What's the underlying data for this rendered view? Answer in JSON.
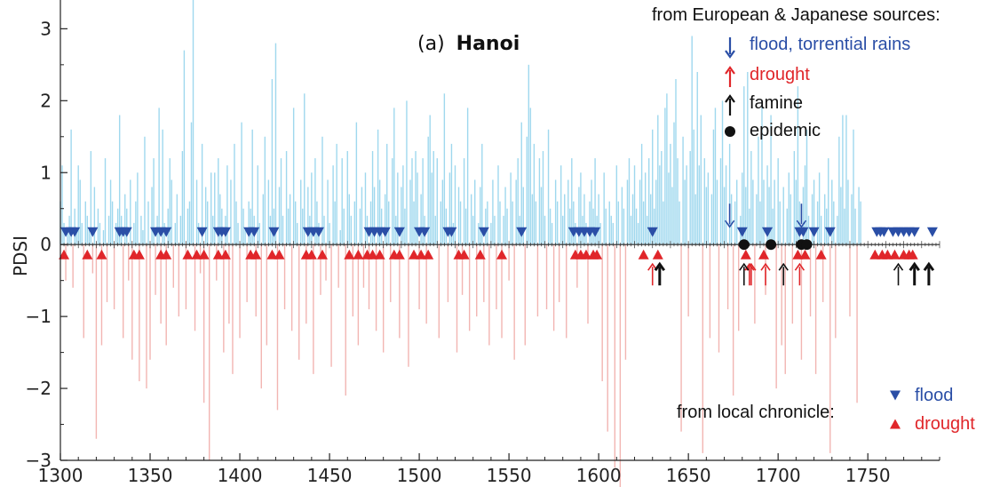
{
  "chart_data": {
    "type": "bar",
    "title_prefix": "(a)",
    "title": "Hanoi",
    "xlabel": "",
    "ylabel": "PDSI",
    "xlim": [
      1300,
      1790
    ],
    "ylim": [
      -3,
      3.4
    ],
    "x_ticks": [
      1300,
      1350,
      1400,
      1450,
      1500,
      1550,
      1600,
      1650,
      1700,
      1750
    ],
    "y_ticks": [
      -3,
      -2,
      -1,
      0,
      1,
      2,
      3
    ],
    "y_tick_labels": [
      "−3",
      "−2",
      "−1",
      "0",
      "1",
      "2",
      "3"
    ],
    "colors": {
      "positive": "#9fd8ee",
      "negative": "#f2b5b2",
      "flood": "#2a4ea6",
      "drought": "#e0262a",
      "famine": "#111111",
      "epidemic": "#111111"
    },
    "series_pdsi": {
      "x_start": 1300,
      "x_step": 1,
      "values": [
        0.6,
        1.1,
        0.3,
        -0.5,
        0.2,
        0.4,
        1.6,
        -0.6,
        0.5,
        0.2,
        1.1,
        0.9,
        0.3,
        -1.3,
        0.6,
        0.4,
        0.2,
        1.3,
        -0.4,
        0.8,
        -2.7,
        0.5,
        0.3,
        -1.4,
        0.2,
        1.2,
        -0.8,
        0.4,
        0.9,
        0.6,
        -0.9,
        0.3,
        0.5,
        1.8,
        0.4,
        -1.3,
        0.7,
        0.5,
        -0.5,
        0.9,
        -1.6,
        0.3,
        0.6,
        1.0,
        -1.9,
        0.4,
        0.2,
        1.5,
        -2.0,
        0.6,
        -1.6,
        0.8,
        1.2,
        -0.7,
        0.4,
        1.9,
        -1.1,
        1.6,
        0.3,
        -1.4,
        0.5,
        1.2,
        0.9,
        -0.6,
        0.3,
        0.7,
        -1.0,
        0.4,
        1.3,
        2.7,
        -0.9,
        0.5,
        0.6,
        1.7,
        3.7,
        -1.2,
        0.9,
        0.3,
        -0.4,
        1.4,
        -2.2,
        0.8,
        0.6,
        -3.0,
        1.0,
        0.4,
        1.0,
        -0.5,
        1.2,
        0.7,
        0.5,
        -1.5,
        0.4,
        1.1,
        -1.1,
        0.9,
        -1.8,
        1.4,
        0.6,
        0.3,
        -1.3,
        1.7,
        0.5,
        0.2,
        -0.8,
        0.6,
        0.5,
        1.6,
        0.4,
        -1.0,
        1.1,
        0.3,
        -2.0,
        0.7,
        1.5,
        -1.4,
        0.9,
        0.4,
        2.3,
        0.5,
        2.8,
        -2.3,
        0.8,
        1.2,
        0.4,
        -0.9,
        1.3,
        0.5,
        0.7,
        -1.2,
        1.9,
        0.6,
        0.3,
        -1.6,
        0.9,
        0.5,
        2.1,
        -1.1,
        0.8,
        0.4,
        1.0,
        -1.8,
        1.2,
        0.6,
        0.3,
        -0.7,
        1.5,
        0.4,
        -0.5,
        0.9,
        0.3,
        -1.7,
        1.1,
        0.6,
        1.4,
        -0.6,
        0.2,
        1.2,
        0.5,
        -2.1,
        1.3,
        0.7,
        0.4,
        -1.0,
        0.6,
        1.7,
        -1.4,
        0.5,
        0.8,
        -0.6,
        1.0,
        0.4,
        -0.9,
        0.6,
        1.3,
        0.8,
        -1.2,
        1.6,
        0.9,
        0.5,
        -1.5,
        0.7,
        1.4,
        0.6,
        -0.8,
        1.2,
        1.9,
        0.4,
        1.0,
        -1.3,
        0.8,
        1.1,
        0.5,
        2.0,
        -1.7,
        0.9,
        1.2,
        0.6,
        1.3,
        1.0,
        -0.9,
        0.7,
        1.2,
        0.4,
        -1.1,
        1.5,
        1.8,
        1.0,
        1.3,
        0.4,
        1.2,
        -1.3,
        0.6,
        0.9,
        2.1,
        0.5,
        -0.8,
        1.0,
        1.4,
        0.3,
        1.1,
        -1.5,
        0.8,
        0.6,
        -0.7,
        1.2,
        0.5,
        1.9,
        -1.2,
        0.7,
        0.4,
        0.9,
        -1.0,
        0.3,
        0.8,
        1.4,
        -0.8,
        0.5,
        0.6,
        -1.4,
        0.3,
        0.9,
        0.4,
        -0.9,
        1.1,
        0.6,
        -1.3,
        0.4,
        0.8,
        0.5,
        -0.5,
        1.0,
        0.6,
        -1.6,
        0.9,
        1.2,
        0.4,
        1.7,
        0.8,
        -1.4,
        1.5,
        2.5,
        1.9,
        0.7,
        1.4,
        0.6,
        -1.0,
        1.2,
        0.8,
        1.3,
        0.4,
        -0.9,
        1.6,
        0.5,
        0.3,
        -1.2,
        0.9,
        0.6,
        -0.8,
        1.1,
        0.4,
        0.7,
        -1.3,
        0.9,
        0.5,
        1.2,
        0.6,
        0.3,
        -0.6,
        0.8,
        1.0,
        0.4,
        0.7,
        0.3,
        -1.1,
        0.6,
        0.9,
        0.5,
        1.2,
        0.4,
        0.7,
        0.3,
        -1.9,
        1.0,
        0.5,
        -2.6,
        0.6,
        0.4,
        0.3,
        -3.1,
        1.1,
        0.6,
        -3.4,
        0.8,
        0.5,
        -1.6,
        0.9,
        1.2,
        0.4,
        0.7,
        1.1,
        0.5,
        0.3,
        0.9,
        1.4,
        0.6,
        1.0,
        0.4,
        1.2,
        0.7,
        1.6,
        0.5,
        0.9,
        1.8,
        1.1,
        1.3,
        0.6,
        1.9,
        2.1,
        1.0,
        1.4,
        0.8,
        1.7,
        2.3,
        1.2,
        0.6,
        -2.6,
        1.5,
        0.9,
        1.1,
        -1.0,
        1.3,
        2.9,
        1.6,
        0.7,
        2.4,
        1.1,
        1.8,
        -2.9,
        1.2,
        0.8,
        1.0,
        -1.3,
        0.7,
        1.6,
        1.9,
        0.9,
        -1.5,
        1.2,
        2.0,
        0.8,
        1.1,
        -0.9,
        1.4,
        0.7,
        -2.1,
        0.6,
        0.9,
        -1.2,
        0.4,
        1.0,
        2.2,
        0.8,
        2.4,
        0.5,
        1.3,
        0.9,
        -1.1,
        0.7,
        1.5,
        0.6,
        2.0,
        0.9,
        -0.7,
        1.1,
        0.8,
        1.8,
        0.5,
        0.9,
        -2.0,
        1.2,
        0.6,
        -1.4,
        0.8,
        -1.8,
        0.5,
        1.0,
        0.7,
        -1.1,
        1.3,
        0.9,
        2.2,
        0.6,
        -1.6,
        0.8,
        1.1,
        1.6,
        0.4,
        -1.0,
        0.7,
        0.9,
        -1.8,
        0.6,
        1.0,
        0.4,
        -0.8,
        0.7,
        0.5,
        1.2,
        -2.9,
        0.9,
        0.6,
        -1.3,
        0.4,
        1.5,
        0.8,
        1.8,
        0.5,
        1.8,
        0.9,
        -1.0,
        0.7,
        1.6,
        0.5,
        -2.2,
        0.8,
        0.6
      ]
    },
    "flood_local_years": [
      1303,
      1306,
      1308,
      1318,
      1333,
      1335,
      1337,
      1353,
      1356,
      1359,
      1379,
      1388,
      1390,
      1392,
      1405,
      1408,
      1419,
      1438,
      1441,
      1444,
      1472,
      1475,
      1478,
      1481,
      1489,
      1500,
      1503,
      1516,
      1518,
      1536,
      1557,
      1586,
      1589,
      1592,
      1595,
      1598,
      1630,
      1680,
      1694,
      1712,
      1714,
      1720,
      1729,
      1755,
      1757,
      1759,
      1764,
      1767,
      1770,
      1773,
      1776,
      1786
    ],
    "drought_local_years": [
      1302,
      1315,
      1323,
      1341,
      1344,
      1356,
      1359,
      1371,
      1376,
      1380,
      1388,
      1392,
      1406,
      1409,
      1418,
      1422,
      1437,
      1440,
      1446,
      1461,
      1466,
      1471,
      1474,
      1478,
      1486,
      1489,
      1497,
      1501,
      1505,
      1522,
      1525,
      1534,
      1546,
      1587,
      1590,
      1593,
      1597,
      1599,
      1625,
      1633,
      1682,
      1692,
      1711,
      1715,
      1724,
      1754,
      1758,
      1761,
      1765,
      1770,
      1773,
      1775
    ],
    "flood_sources_years": [
      1673,
      1713
    ],
    "drought_sources_years": [
      1630,
      1684,
      1685,
      1693,
      1712
    ],
    "famine_years": [
      1634,
      1681,
      1703,
      1767,
      1776,
      1784
    ],
    "famine_bold_years": [
      1634,
      1776,
      1784
    ],
    "epidemic_years": [
      1681,
      1696,
      1713,
      1716
    ],
    "legend_sources": {
      "heading": "from European & Japanese sources:",
      "items": [
        {
          "label": "flood, torrential rains",
          "symbol": "down-arrow",
          "color": "#2a4ea6"
        },
        {
          "label": "drought",
          "symbol": "up-arrow",
          "color": "#e0262a"
        },
        {
          "label": "famine",
          "symbol": "up-arrow",
          "color": "#111111"
        },
        {
          "label": "epidemic",
          "symbol": "dot",
          "color": "#111111"
        }
      ]
    },
    "legend_local": {
      "heading": "from local chronicle:",
      "items": [
        {
          "label": "flood",
          "symbol": "down-triangle",
          "color": "#2a4ea6"
        },
        {
          "label": "drought",
          "symbol": "up-triangle",
          "color": "#e0262a"
        }
      ]
    }
  }
}
